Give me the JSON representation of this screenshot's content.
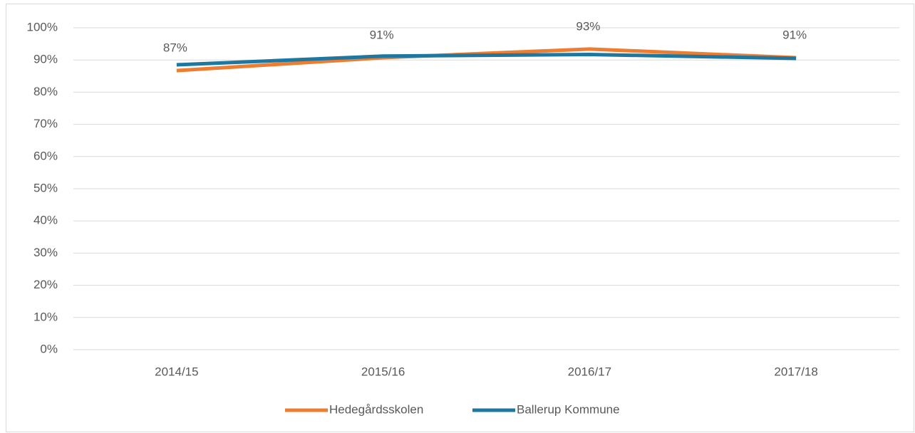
{
  "chart_data": {
    "type": "line",
    "categories": [
      "2014/15",
      "2015/16",
      "2016/17",
      "2017/18"
    ],
    "series": [
      {
        "name": "Hedegårdsskolen",
        "color": "#ed7d31",
        "values": [
          86.7,
          90.7,
          93.4,
          90.7
        ],
        "value_labels": [
          "87%",
          "91%",
          "93%",
          "91%"
        ]
      },
      {
        "name": "Ballerup Kommune",
        "color": "#1f77a0",
        "values": [
          88.5,
          91.2,
          91.7,
          90.5
        ]
      }
    ],
    "ylim": [
      0,
      100
    ],
    "yticks": [
      {
        "value": 0,
        "label": "0%"
      },
      {
        "value": 10,
        "label": "10%"
      },
      {
        "value": 20,
        "label": "20%"
      },
      {
        "value": 30,
        "label": "30%"
      },
      {
        "value": 40,
        "label": "40%"
      },
      {
        "value": 50,
        "label": "50%"
      },
      {
        "value": 60,
        "label": "60%"
      },
      {
        "value": 70,
        "label": "70%"
      },
      {
        "value": 80,
        "label": "80%"
      },
      {
        "value": 90,
        "label": "90%"
      },
      {
        "value": 100,
        "label": "100%"
      }
    ],
    "grid": true,
    "legend": "bottom"
  }
}
